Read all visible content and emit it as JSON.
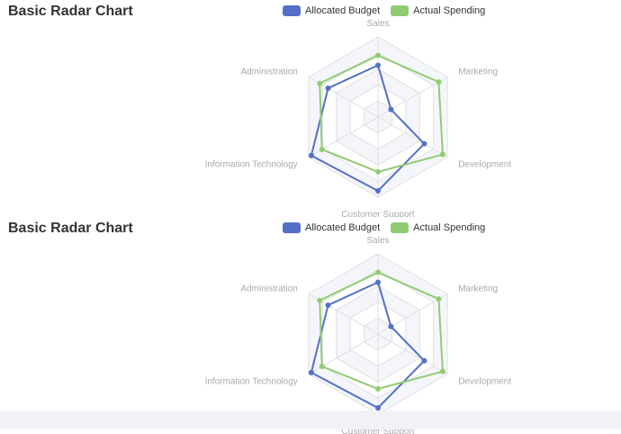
{
  "colors": {
    "allocated": "#5470c6",
    "actual": "#91cc75",
    "split_fill": "#f4f6fb",
    "split_line": "#e0e0e0",
    "axis_label": "#aaaaaa"
  },
  "charts": [
    {
      "title": "Basic Radar Chart",
      "legend": [
        {
          "name": "Allocated Budget",
          "color": "#5470c6"
        },
        {
          "name": "Actual Spending",
          "color": "#91cc75"
        }
      ]
    },
    {
      "title": "Basic Radar Chart",
      "legend": [
        {
          "name": "Allocated Budget",
          "color": "#5470c6"
        },
        {
          "name": "Actual Spending",
          "color": "#91cc75"
        }
      ]
    }
  ],
  "chart_data": [
    {
      "type": "radar",
      "title": "Basic Radar Chart",
      "indicators": [
        {
          "name": "Sales",
          "max": 6500
        },
        {
          "name": "Marketing",
          "max": 16000
        },
        {
          "name": "Development",
          "max": 30000
        },
        {
          "name": "Customer Support",
          "max": 38000
        },
        {
          "name": "Information Technology",
          "max": 52000
        },
        {
          "name": "Administration",
          "max": 25000
        }
      ],
      "series": [
        {
          "name": "Allocated Budget",
          "values": [
            4200,
            3000,
            20000,
            35000,
            50000,
            18000
          ]
        },
        {
          "name": "Actual Spending",
          "values": [
            5000,
            14000,
            28000,
            26000,
            42000,
            21000
          ]
        }
      ],
      "legend_position": "top-center",
      "split_number": 5
    },
    {
      "type": "radar",
      "title": "Basic Radar Chart",
      "indicators": [
        {
          "name": "Sales",
          "max": 6500
        },
        {
          "name": "Marketing",
          "max": 16000
        },
        {
          "name": "Development",
          "max": 30000
        },
        {
          "name": "Customer Support",
          "max": 38000
        },
        {
          "name": "Information Technology",
          "max": 52000
        },
        {
          "name": "Administration",
          "max": 25000
        }
      ],
      "series": [
        {
          "name": "Allocated Budget",
          "values": [
            4200,
            3000,
            20000,
            35000,
            50000,
            18000
          ]
        },
        {
          "name": "Actual Spending",
          "values": [
            5000,
            14000,
            28000,
            26000,
            42000,
            21000
          ]
        }
      ],
      "legend_position": "top-center",
      "split_number": 5
    }
  ]
}
